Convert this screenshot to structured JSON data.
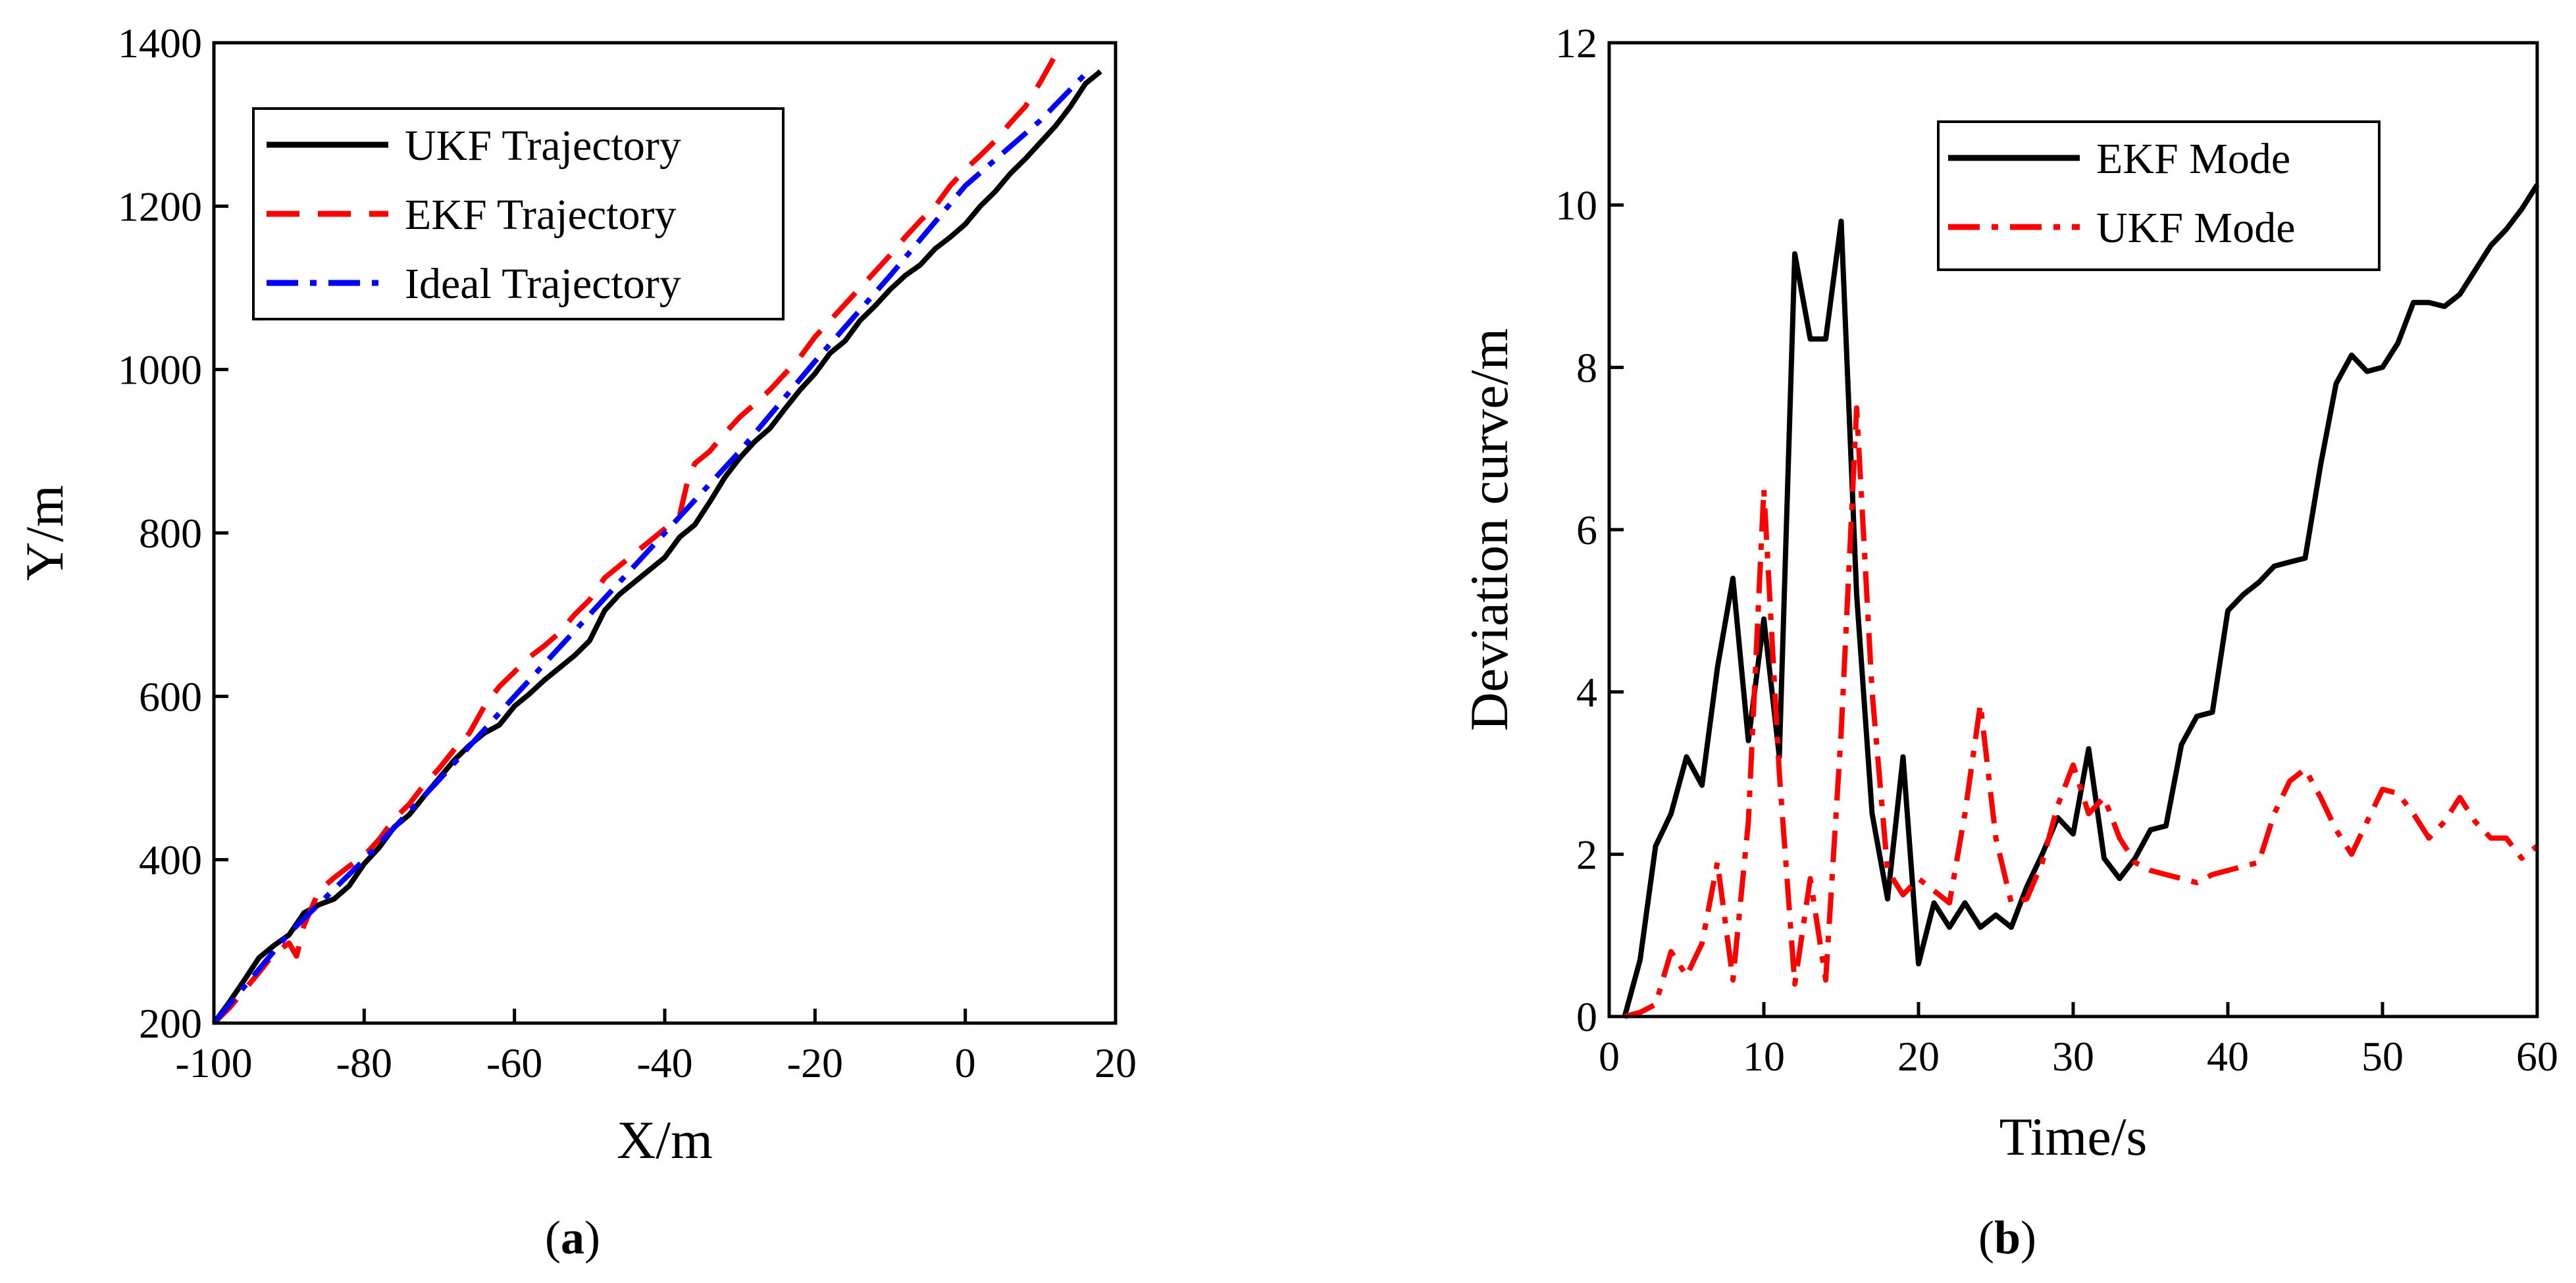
{
  "chart_data": [
    {
      "id": "a",
      "type": "line",
      "caption_open": "(",
      "caption_letter": "a",
      "caption_close": ")",
      "xlabel": "X/m",
      "ylabel": "Y/m",
      "xlim": [
        -100,
        20
      ],
      "ylim": [
        200,
        1400
      ],
      "xticks": [
        -100,
        -80,
        -60,
        -40,
        -20,
        0,
        20
      ],
      "yticks": [
        200,
        400,
        600,
        800,
        1000,
        1200,
        1400
      ],
      "legend_position": "top-left",
      "series": [
        {
          "name": "UKF Trajectory",
          "color": "#000000",
          "style": "solid",
          "points": [
            [
              -100,
              200
            ],
            [
              -98,
              225
            ],
            [
              -96,
              252
            ],
            [
              -94,
              280
            ],
            [
              -92,
              295
            ],
            [
              -90,
              308
            ],
            [
              -88,
              335
            ],
            [
              -86,
              345
            ],
            [
              -84,
              352
            ],
            [
              -82,
              368
            ],
            [
              -80,
              395
            ],
            [
              -78,
              415
            ],
            [
              -76,
              440
            ],
            [
              -74,
              455
            ],
            [
              -72,
              478
            ],
            [
              -70,
              500
            ],
            [
              -68,
              522
            ],
            [
              -66,
              540
            ],
            [
              -64,
              555
            ],
            [
              -62,
              565
            ],
            [
              -60,
              588
            ],
            [
              -58,
              603
            ],
            [
              -56,
              620
            ],
            [
              -54,
              635
            ],
            [
              -52,
              650
            ],
            [
              -50,
              668
            ],
            [
              -48,
              705
            ],
            [
              -46,
              725
            ],
            [
              -44,
              740
            ],
            [
              -42,
              755
            ],
            [
              -40,
              770
            ],
            [
              -38,
              795
            ],
            [
              -36,
              810
            ],
            [
              -34,
              838
            ],
            [
              -32,
              868
            ],
            [
              -30,
              892
            ],
            [
              -28,
              912
            ],
            [
              -26,
              928
            ],
            [
              -24,
              952
            ],
            [
              -22,
              975
            ],
            [
              -20,
              995
            ],
            [
              -18,
              1020
            ],
            [
              -16,
              1035
            ],
            [
              -14,
              1060
            ],
            [
              -12,
              1078
            ],
            [
              -10,
              1098
            ],
            [
              -8,
              1115
            ],
            [
              -6,
              1128
            ],
            [
              -4,
              1148
            ],
            [
              -2,
              1162
            ],
            [
              0,
              1178
            ],
            [
              2,
              1200
            ],
            [
              4,
              1218
            ],
            [
              6,
              1240
            ],
            [
              8,
              1258
            ],
            [
              10,
              1278
            ],
            [
              12,
              1298
            ],
            [
              14,
              1322
            ],
            [
              16,
              1350
            ],
            [
              18,
              1365
            ]
          ]
        },
        {
          "name": "EKF Trajectory",
          "color": "#ff0000",
          "style": "dashed",
          "points": [
            [
              -100,
              200
            ],
            [
              -98,
              218
            ],
            [
              -96,
              240
            ],
            [
              -94,
              262
            ],
            [
              -92,
              285
            ],
            [
              -90,
              298
            ],
            [
              -89,
              282
            ],
            [
              -88,
              320
            ],
            [
              -86,
              362
            ],
            [
              -84,
              378
            ],
            [
              -82,
              392
            ],
            [
              -80,
              405
            ],
            [
              -78,
              425
            ],
            [
              -76,
              450
            ],
            [
              -74,
              468
            ],
            [
              -72,
              492
            ],
            [
              -70,
              512
            ],
            [
              -68,
              535
            ],
            [
              -66,
              555
            ],
            [
              -64,
              588
            ],
            [
              -62,
              612
            ],
            [
              -60,
              630
            ],
            [
              -58,
              648
            ],
            [
              -56,
              662
            ],
            [
              -54,
              678
            ],
            [
              -52,
              700
            ],
            [
              -50,
              718
            ],
            [
              -48,
              745
            ],
            [
              -46,
              760
            ],
            [
              -44,
              775
            ],
            [
              -42,
              790
            ],
            [
              -40,
              805
            ],
            [
              -38,
              822
            ],
            [
              -37,
              862
            ],
            [
              -36,
              885
            ],
            [
              -34,
              900
            ],
            [
              -32,
              922
            ],
            [
              -30,
              942
            ],
            [
              -28,
              958
            ],
            [
              -26,
              975
            ],
            [
              -24,
              995
            ],
            [
              -22,
              1015
            ],
            [
              -20,
              1040
            ],
            [
              -18,
              1060
            ],
            [
              -16,
              1080
            ],
            [
              -14,
              1100
            ],
            [
              -12,
              1120
            ],
            [
              -10,
              1140
            ],
            [
              -8,
              1162
            ],
            [
              -6,
              1182
            ],
            [
              -4,
              1200
            ],
            [
              -2,
              1225
            ],
            [
              0,
              1245
            ],
            [
              2,
              1262
            ],
            [
              4,
              1280
            ],
            [
              6,
              1302
            ],
            [
              8,
              1322
            ],
            [
              10,
              1352
            ],
            [
              12,
              1385
            ]
          ]
        },
        {
          "name": "Ideal Trajectory",
          "color": "#0000ff",
          "style": "dashdot",
          "points": [
            [
              -100,
              200
            ],
            [
              -90,
              310
            ],
            [
              -80,
              400
            ],
            [
              -70,
              498
            ],
            [
              -60,
              600
            ],
            [
              -50,
              700
            ],
            [
              -40,
              800
            ],
            [
              -30,
              900
            ],
            [
              -20,
              1010
            ],
            [
              -10,
              1115
            ],
            [
              0,
              1225
            ],
            [
              10,
              1305
            ],
            [
              16,
              1362
            ]
          ]
        }
      ]
    },
    {
      "id": "b",
      "type": "line",
      "caption_open": "(",
      "caption_letter": "b",
      "caption_close": ")",
      "xlabel": "Time/s",
      "ylabel": "Deviation curve/m",
      "xlim": [
        0,
        60
      ],
      "ylim": [
        0,
        12
      ],
      "xticks": [
        0,
        10,
        20,
        30,
        40,
        50,
        60
      ],
      "yticks": [
        0,
        2,
        4,
        6,
        8,
        10,
        12
      ],
      "legend_position": "top-right",
      "series": [
        {
          "name": "EKF Mode",
          "color": "#000000",
          "style": "solid",
          "points": [
            [
              1,
              0
            ],
            [
              2,
              0.7
            ],
            [
              3,
              2.1
            ],
            [
              4,
              2.5
            ],
            [
              5,
              3.2
            ],
            [
              6,
              2.85
            ],
            [
              7,
              4.3
            ],
            [
              8,
              5.4
            ],
            [
              9,
              3.4
            ],
            [
              10,
              4.9
            ],
            [
              11,
              3.2
            ],
            [
              12,
              9.4
            ],
            [
              13,
              8.35
            ],
            [
              14,
              8.35
            ],
            [
              15,
              9.8
            ],
            [
              16,
              5.2
            ],
            [
              17,
              2.5
            ],
            [
              18,
              1.45
            ],
            [
              19,
              3.2
            ],
            [
              20,
              0.65
            ],
            [
              21,
              1.4
            ],
            [
              22,
              1.1
            ],
            [
              23,
              1.4
            ],
            [
              24,
              1.1
            ],
            [
              25,
              1.25
            ],
            [
              26,
              1.1
            ],
            [
              27,
              1.6
            ],
            [
              28,
              2.0
            ],
            [
              29,
              2.45
            ],
            [
              30,
              2.25
            ],
            [
              31,
              3.3
            ],
            [
              32,
              1.95
            ],
            [
              33,
              1.7
            ],
            [
              34,
              1.95
            ],
            [
              35,
              2.3
            ],
            [
              36,
              2.35
            ],
            [
              37,
              3.35
            ],
            [
              38,
              3.7
            ],
            [
              39,
              3.75
            ],
            [
              40,
              5.0
            ],
            [
              41,
              5.2
            ],
            [
              42,
              5.35
            ],
            [
              43,
              5.55
            ],
            [
              44,
              5.6
            ],
            [
              45,
              5.65
            ],
            [
              46,
              6.8
            ],
            [
              47,
              7.8
            ],
            [
              48,
              8.15
            ],
            [
              49,
              7.95
            ],
            [
              50,
              8.0
            ],
            [
              51,
              8.3
            ],
            [
              52,
              8.8
            ],
            [
              53,
              8.8
            ],
            [
              54,
              8.75
            ],
            [
              55,
              8.9
            ],
            [
              56,
              9.2
            ],
            [
              57,
              9.5
            ],
            [
              58,
              9.7
            ],
            [
              59,
              9.95
            ],
            [
              60,
              10.25
            ]
          ]
        },
        {
          "name": "UKF Mode",
          "color": "#ff0000",
          "style": "dashdot",
          "points": [
            [
              1,
              0
            ],
            [
              2,
              0.05
            ],
            [
              3,
              0.15
            ],
            [
              4,
              0.8
            ],
            [
              5,
              0.5
            ],
            [
              6,
              0.9
            ],
            [
              7,
              1.9
            ],
            [
              8,
              0.45
            ],
            [
              9,
              2.4
            ],
            [
              10,
              6.5
            ],
            [
              11,
              3.0
            ],
            [
              12,
              0.4
            ],
            [
              13,
              1.7
            ],
            [
              14,
              0.45
            ],
            [
              15,
              3.5
            ],
            [
              16,
              7.5
            ],
            [
              17,
              4.0
            ],
            [
              18,
              1.8
            ],
            [
              19,
              1.5
            ],
            [
              20,
              1.7
            ],
            [
              21,
              1.55
            ],
            [
              22,
              1.4
            ],
            [
              23,
              2.5
            ],
            [
              24,
              3.85
            ],
            [
              25,
              2.2
            ],
            [
              26,
              1.4
            ],
            [
              27,
              1.45
            ],
            [
              28,
              1.9
            ],
            [
              29,
              2.6
            ],
            [
              30,
              3.1
            ],
            [
              31,
              2.5
            ],
            [
              32,
              2.7
            ],
            [
              33,
              2.2
            ],
            [
              34,
              1.9
            ],
            [
              35,
              1.8
            ],
            [
              36,
              1.75
            ],
            [
              37,
              1.7
            ],
            [
              38,
              1.65
            ],
            [
              39,
              1.75
            ],
            [
              40,
              1.8
            ],
            [
              41,
              1.85
            ],
            [
              42,
              1.9
            ],
            [
              43,
              2.5
            ],
            [
              44,
              2.9
            ],
            [
              45,
              3.05
            ],
            [
              46,
              2.7
            ],
            [
              47,
              2.3
            ],
            [
              48,
              2.0
            ],
            [
              49,
              2.4
            ],
            [
              50,
              2.8
            ],
            [
              51,
              2.75
            ],
            [
              52,
              2.5
            ],
            [
              53,
              2.2
            ],
            [
              54,
              2.4
            ],
            [
              55,
              2.7
            ],
            [
              56,
              2.4
            ],
            [
              57,
              2.2
            ],
            [
              58,
              2.2
            ],
            [
              59,
              1.95
            ],
            [
              60,
              2.1
            ]
          ]
        }
      ]
    }
  ]
}
